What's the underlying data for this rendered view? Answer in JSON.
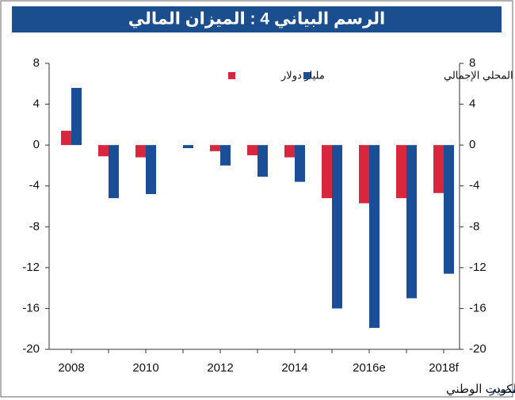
{
  "chart_data": {
    "type": "bar",
    "title": "الرسم البياني 4 : الميزان المالي",
    "categories": [
      "2008",
      null,
      "2010",
      null,
      "2012",
      null,
      "2014",
      null,
      "2016e",
      null,
      "2018f"
    ],
    "series": [
      {
        "name": "مليار دولار",
        "color": "#d7263d",
        "values": [
          1.4,
          -1.1,
          -1.2,
          0,
          -0.6,
          -1.0,
          -1.2,
          -5.2,
          -5.7,
          -5.2,
          -4.7
        ]
      },
      {
        "name": "%من الناتج المحلي الإجمالي",
        "color": "#1a4e96",
        "axis": "y2",
        "values": [
          5.6,
          -5.2,
          -4.8,
          -0.3,
          -2.0,
          -3.1,
          -3.6,
          -16.0,
          -17.9,
          -15.0,
          -12.6
        ]
      }
    ],
    "ylim": [
      -20,
      8
    ],
    "yticks": [
      -20,
      -16,
      -12,
      -8,
      -4,
      0,
      4,
      8
    ],
    "y2lim": [
      -20,
      8
    ],
    "y2ticks": [
      -20,
      -16,
      -12,
      -8,
      -4,
      0,
      4,
      8
    ],
    "grid": false,
    "source_label": "المصدر",
    "source": ":  وزارة المالية وتقديرات بنك الكويت الوطني"
  }
}
